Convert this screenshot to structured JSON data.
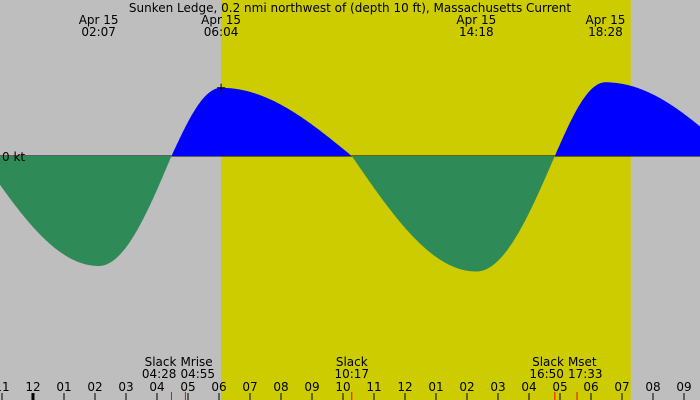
{
  "chart_data": {
    "type": "area",
    "title": "Sunken Ledge, 0.2 nmi northwest of (depth 10 ft), Massachusetts Current",
    "ylabel": "0 kt",
    "colors": {
      "night": "#bebebe",
      "day": "#cccc00",
      "flood": "#0000ff",
      "ebb": "#2e8b57"
    },
    "daylight": {
      "start": "06:04",
      "end": "19:17"
    },
    "extrema": [
      {
        "date": "Apr 15",
        "time": "02:07",
        "kind": "ebb",
        "value_kt": -1.0
      },
      {
        "date": "Apr 15",
        "time": "06:04",
        "kind": "flood",
        "value_kt": 0.62
      },
      {
        "date": "Apr 15",
        "time": "14:18",
        "kind": "ebb",
        "value_kt": -1.05
      },
      {
        "date": "Apr 15",
        "time": "18:28",
        "kind": "flood",
        "value_kt": 0.67
      }
    ],
    "events": [
      {
        "label": "Slack",
        "time": "04:28"
      },
      {
        "label": "Mrise",
        "time": "04:55"
      },
      {
        "label": "Slack",
        "time": "10:17"
      },
      {
        "label": "Slack",
        "time": "16:50"
      },
      {
        "label": "Mset",
        "time": "17:33"
      }
    ],
    "x_ticks": [
      "11",
      "12",
      "01",
      "02",
      "03",
      "04",
      "05",
      "06",
      "07",
      "08",
      "09",
      "10",
      "11",
      "12",
      "01",
      "02",
      "03",
      "04",
      "05",
      "06",
      "07",
      "08",
      "09"
    ]
  }
}
